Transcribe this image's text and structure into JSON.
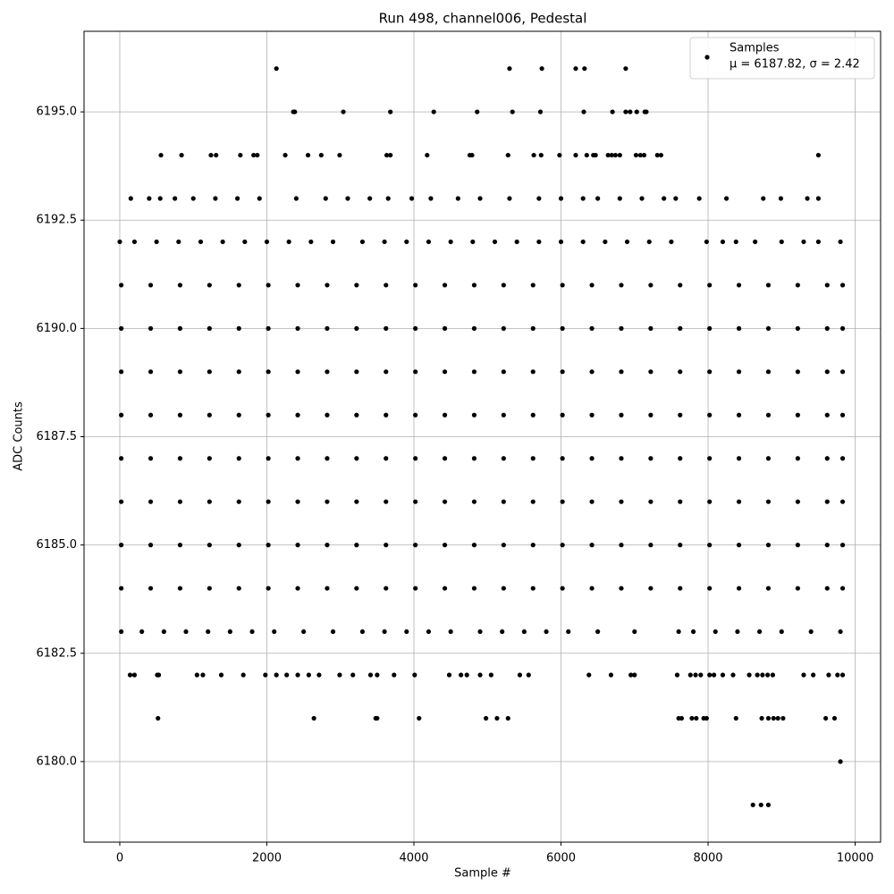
{
  "chart_data": {
    "type": "scatter",
    "title": "Run 498, channel006, Pedestal",
    "x_label": "Sample #",
    "y_label": "ADC Counts",
    "xlim": [
      -486,
      10346
    ],
    "ylim": [
      6178.14,
      6196.86
    ],
    "xticks": [
      0,
      2000,
      4000,
      6000,
      8000,
      10000
    ],
    "yticks": [
      {
        "value": 6180,
        "label": "6180.0"
      },
      {
        "value": 6182.5,
        "label": "6182.5"
      },
      {
        "value": 6185,
        "label": "6185.0"
      },
      {
        "value": 6187.5,
        "label": "6187.5"
      },
      {
        "value": 6190,
        "label": "6190.0"
      },
      {
        "value": 6192.5,
        "label": "6192.5"
      },
      {
        "value": 6195,
        "label": "6195.0"
      }
    ],
    "grid": true,
    "legend": "upper right",
    "annotation": "μ = 6187.82, σ = 2.42",
    "x": [
      2130,
      5300,
      5740,
      6200,
      6320,
      6880,
      2360,
      2380,
      3040,
      3680,
      4270,
      4860,
      5340,
      5720,
      6310,
      6700,
      6880,
      6940,
      7030,
      7140,
      7160,
      560,
      840,
      1240,
      1310,
      1640,
      1820,
      1870,
      2250,
      2560,
      2740,
      2990,
      3630,
      3680,
      4180,
      4760,
      4790,
      5280,
      5630,
      5730,
      5980,
      6200,
      6350,
      6440,
      6470,
      6640,
      6690,
      6740,
      6800,
      7020,
      7080,
      7130,
      7310,
      7360,
      9500,
      150,
      400,
      550,
      750,
      1000,
      1300,
      1600,
      1900,
      2400,
      2800,
      3100,
      3400,
      3650,
      3970,
      4230,
      4600,
      4900,
      5300,
      5700,
      6000,
      6300,
      6500,
      6800,
      7100,
      7400,
      7560,
      7880,
      8250,
      8750,
      8990,
      9350,
      9500,
      0,
      200,
      500,
      800,
      1100,
      1400,
      1700,
      2000,
      2300,
      2600,
      2900,
      3300,
      3600,
      3900,
      4200,
      4500,
      4800,
      5100,
      5400,
      5700,
      6000,
      6300,
      6600,
      6900,
      7200,
      7500,
      7980,
      8200,
      8380,
      8640,
      9000,
      9300,
      9500,
      9800,
      20,
      420,
      820,
      1220,
      1620,
      2020,
      2420,
      2820,
      3220,
      3620,
      4020,
      4420,
      4820,
      5220,
      5620,
      6020,
      6420,
      6820,
      7220,
      7620,
      8020,
      8420,
      8820,
      9220,
      9620,
      9830,
      20,
      420,
      820,
      1220,
      1620,
      2020,
      2420,
      2820,
      3220,
      3620,
      4020,
      4420,
      4820,
      5220,
      5620,
      6020,
      6420,
      6820,
      7220,
      7620,
      8020,
      8420,
      8820,
      9220,
      9620,
      9830,
      20,
      420,
      820,
      1220,
      1620,
      2020,
      2420,
      2820,
      3220,
      3620,
      4020,
      4420,
      4820,
      5220,
      5620,
      6020,
      6420,
      6820,
      7220,
      7620,
      8020,
      8420,
      8820,
      9220,
      9620,
      9830,
      20,
      420,
      820,
      1220,
      1620,
      2020,
      2420,
      2820,
      3220,
      3620,
      4020,
      4420,
      4820,
      5220,
      5620,
      6020,
      6420,
      6820,
      7220,
      7620,
      8020,
      8420,
      8820,
      9220,
      9620,
      9830,
      20,
      420,
      820,
      1220,
      1620,
      2020,
      2420,
      2820,
      3220,
      3620,
      4020,
      4420,
      4820,
      5220,
      5620,
      6020,
      6420,
      6820,
      7220,
      7620,
      8020,
      8420,
      8820,
      9220,
      9620,
      9830,
      20,
      420,
      820,
      1220,
      1620,
      2020,
      2420,
      2820,
      3220,
      3620,
      4020,
      4420,
      4820,
      5220,
      5620,
      6020,
      6420,
      6820,
      7220,
      7620,
      8020,
      8420,
      8820,
      9220,
      9620,
      9830,
      20,
      420,
      820,
      1220,
      1620,
      2020,
      2420,
      2820,
      3220,
      3620,
      4020,
      4420,
      4820,
      5220,
      5620,
      6020,
      6420,
      6820,
      7220,
      7620,
      8020,
      8420,
      8820,
      9220,
      9620,
      9830,
      20,
      420,
      820,
      1220,
      1620,
      2020,
      2420,
      2820,
      3220,
      3620,
      4020,
      4420,
      4820,
      5220,
      5620,
      6020,
      6420,
      6820,
      7220,
      7620,
      8020,
      8420,
      8820,
      9220,
      9620,
      9830,
      20,
      300,
      600,
      900,
      1200,
      1500,
      1800,
      2100,
      2500,
      2900,
      3300,
      3600,
      3900,
      4200,
      4500,
      4900,
      5200,
      5500,
      5800,
      6100,
      6500,
      7000,
      7600,
      7800,
      8100,
      8400,
      8700,
      9000,
      9400,
      9800,
      140,
      200,
      510,
      530,
      1050,
      1130,
      1380,
      1680,
      1980,
      2130,
      2270,
      2420,
      2570,
      2710,
      2990,
      3170,
      3410,
      3500,
      3730,
      4010,
      4480,
      4640,
      4720,
      4900,
      5050,
      5440,
      5560,
      6380,
      6680,
      6950,
      7000,
      7580,
      7760,
      7830,
      7900,
      8020,
      8080,
      8200,
      8340,
      8560,
      8670,
      8740,
      8810,
      8880,
      9300,
      9430,
      9640,
      9760,
      9830,
      520,
      2640,
      3480,
      3500,
      4070,
      4980,
      5130,
      5280,
      7600,
      7640,
      7780,
      7840,
      7940,
      7980,
      8380,
      8730,
      8820,
      8890,
      8950,
      9020,
      9600,
      9720,
      9800,
      8610,
      8720,
      8820
    ],
    "series": [
      {
        "name": "Samples",
        "color": "#000000",
        "values": [
          6196,
          6196,
          6196,
          6196,
          6196,
          6196,
          6195,
          6195,
          6195,
          6195,
          6195,
          6195,
          6195,
          6195,
          6195,
          6195,
          6195,
          6195,
          6195,
          6195,
          6195,
          6194,
          6194,
          6194,
          6194,
          6194,
          6194,
          6194,
          6194,
          6194,
          6194,
          6194,
          6194,
          6194,
          6194,
          6194,
          6194,
          6194,
          6194,
          6194,
          6194,
          6194,
          6194,
          6194,
          6194,
          6194,
          6194,
          6194,
          6194,
          6194,
          6194,
          6194,
          6194,
          6194,
          6194,
          6193,
          6193,
          6193,
          6193,
          6193,
          6193,
          6193,
          6193,
          6193,
          6193,
          6193,
          6193,
          6193,
          6193,
          6193,
          6193,
          6193,
          6193,
          6193,
          6193,
          6193,
          6193,
          6193,
          6193,
          6193,
          6193,
          6193,
          6193,
          6193,
          6193,
          6193,
          6193,
          6192,
          6192,
          6192,
          6192,
          6192,
          6192,
          6192,
          6192,
          6192,
          6192,
          6192,
          6192,
          6192,
          6192,
          6192,
          6192,
          6192,
          6192,
          6192,
          6192,
          6192,
          6192,
          6192,
          6192,
          6192,
          6192,
          6192,
          6192,
          6192,
          6192,
          6192,
          6192,
          6192,
          6192,
          6191,
          6191,
          6191,
          6191,
          6191,
          6191,
          6191,
          6191,
          6191,
          6191,
          6191,
          6191,
          6191,
          6191,
          6191,
          6191,
          6191,
          6191,
          6191,
          6191,
          6191,
          6191,
          6191,
          6191,
          6191,
          6191,
          6190,
          6190,
          6190,
          6190,
          6190,
          6190,
          6190,
          6190,
          6190,
          6190,
          6190,
          6190,
          6190,
          6190,
          6190,
          6190,
          6190,
          6190,
          6190,
          6190,
          6190,
          6190,
          6190,
          6190,
          6190,
          6190,
          6189,
          6189,
          6189,
          6189,
          6189,
          6189,
          6189,
          6189,
          6189,
          6189,
          6189,
          6189,
          6189,
          6189,
          6189,
          6189,
          6189,
          6189,
          6189,
          6189,
          6189,
          6189,
          6189,
          6189,
          6189,
          6189,
          6188,
          6188,
          6188,
          6188,
          6188,
          6188,
          6188,
          6188,
          6188,
          6188,
          6188,
          6188,
          6188,
          6188,
          6188,
          6188,
          6188,
          6188,
          6188,
          6188,
          6188,
          6188,
          6188,
          6188,
          6188,
          6188,
          6187,
          6187,
          6187,
          6187,
          6187,
          6187,
          6187,
          6187,
          6187,
          6187,
          6187,
          6187,
          6187,
          6187,
          6187,
          6187,
          6187,
          6187,
          6187,
          6187,
          6187,
          6187,
          6187,
          6187,
          6187,
          6187,
          6186,
          6186,
          6186,
          6186,
          6186,
          6186,
          6186,
          6186,
          6186,
          6186,
          6186,
          6186,
          6186,
          6186,
          6186,
          6186,
          6186,
          6186,
          6186,
          6186,
          6186,
          6186,
          6186,
          6186,
          6186,
          6186,
          6185,
          6185,
          6185,
          6185,
          6185,
          6185,
          6185,
          6185,
          6185,
          6185,
          6185,
          6185,
          6185,
          6185,
          6185,
          6185,
          6185,
          6185,
          6185,
          6185,
          6185,
          6185,
          6185,
          6185,
          6185,
          6185,
          6184,
          6184,
          6184,
          6184,
          6184,
          6184,
          6184,
          6184,
          6184,
          6184,
          6184,
          6184,
          6184,
          6184,
          6184,
          6184,
          6184,
          6184,
          6184,
          6184,
          6184,
          6184,
          6184,
          6184,
          6184,
          6184,
          6183,
          6183,
          6183,
          6183,
          6183,
          6183,
          6183,
          6183,
          6183,
          6183,
          6183,
          6183,
          6183,
          6183,
          6183,
          6183,
          6183,
          6183,
          6183,
          6183,
          6183,
          6183,
          6183,
          6183,
          6183,
          6183,
          6183,
          6183,
          6183,
          6183,
          6182,
          6182,
          6182,
          6182,
          6182,
          6182,
          6182,
          6182,
          6182,
          6182,
          6182,
          6182,
          6182,
          6182,
          6182,
          6182,
          6182,
          6182,
          6182,
          6182,
          6182,
          6182,
          6182,
          6182,
          6182,
          6182,
          6182,
          6182,
          6182,
          6182,
          6182,
          6182,
          6182,
          6182,
          6182,
          6182,
          6182,
          6182,
          6182,
          6182,
          6182,
          6182,
          6182,
          6182,
          6182,
          6182,
          6182,
          6182,
          6182,
          6181,
          6181,
          6181,
          6181,
          6181,
          6181,
          6181,
          6181,
          6181,
          6181,
          6181,
          6181,
          6181,
          6181,
          6181,
          6181,
          6181,
          6181,
          6181,
          6181,
          6181,
          6181,
          6180,
          6179,
          6179,
          6179
        ]
      }
    ]
  }
}
